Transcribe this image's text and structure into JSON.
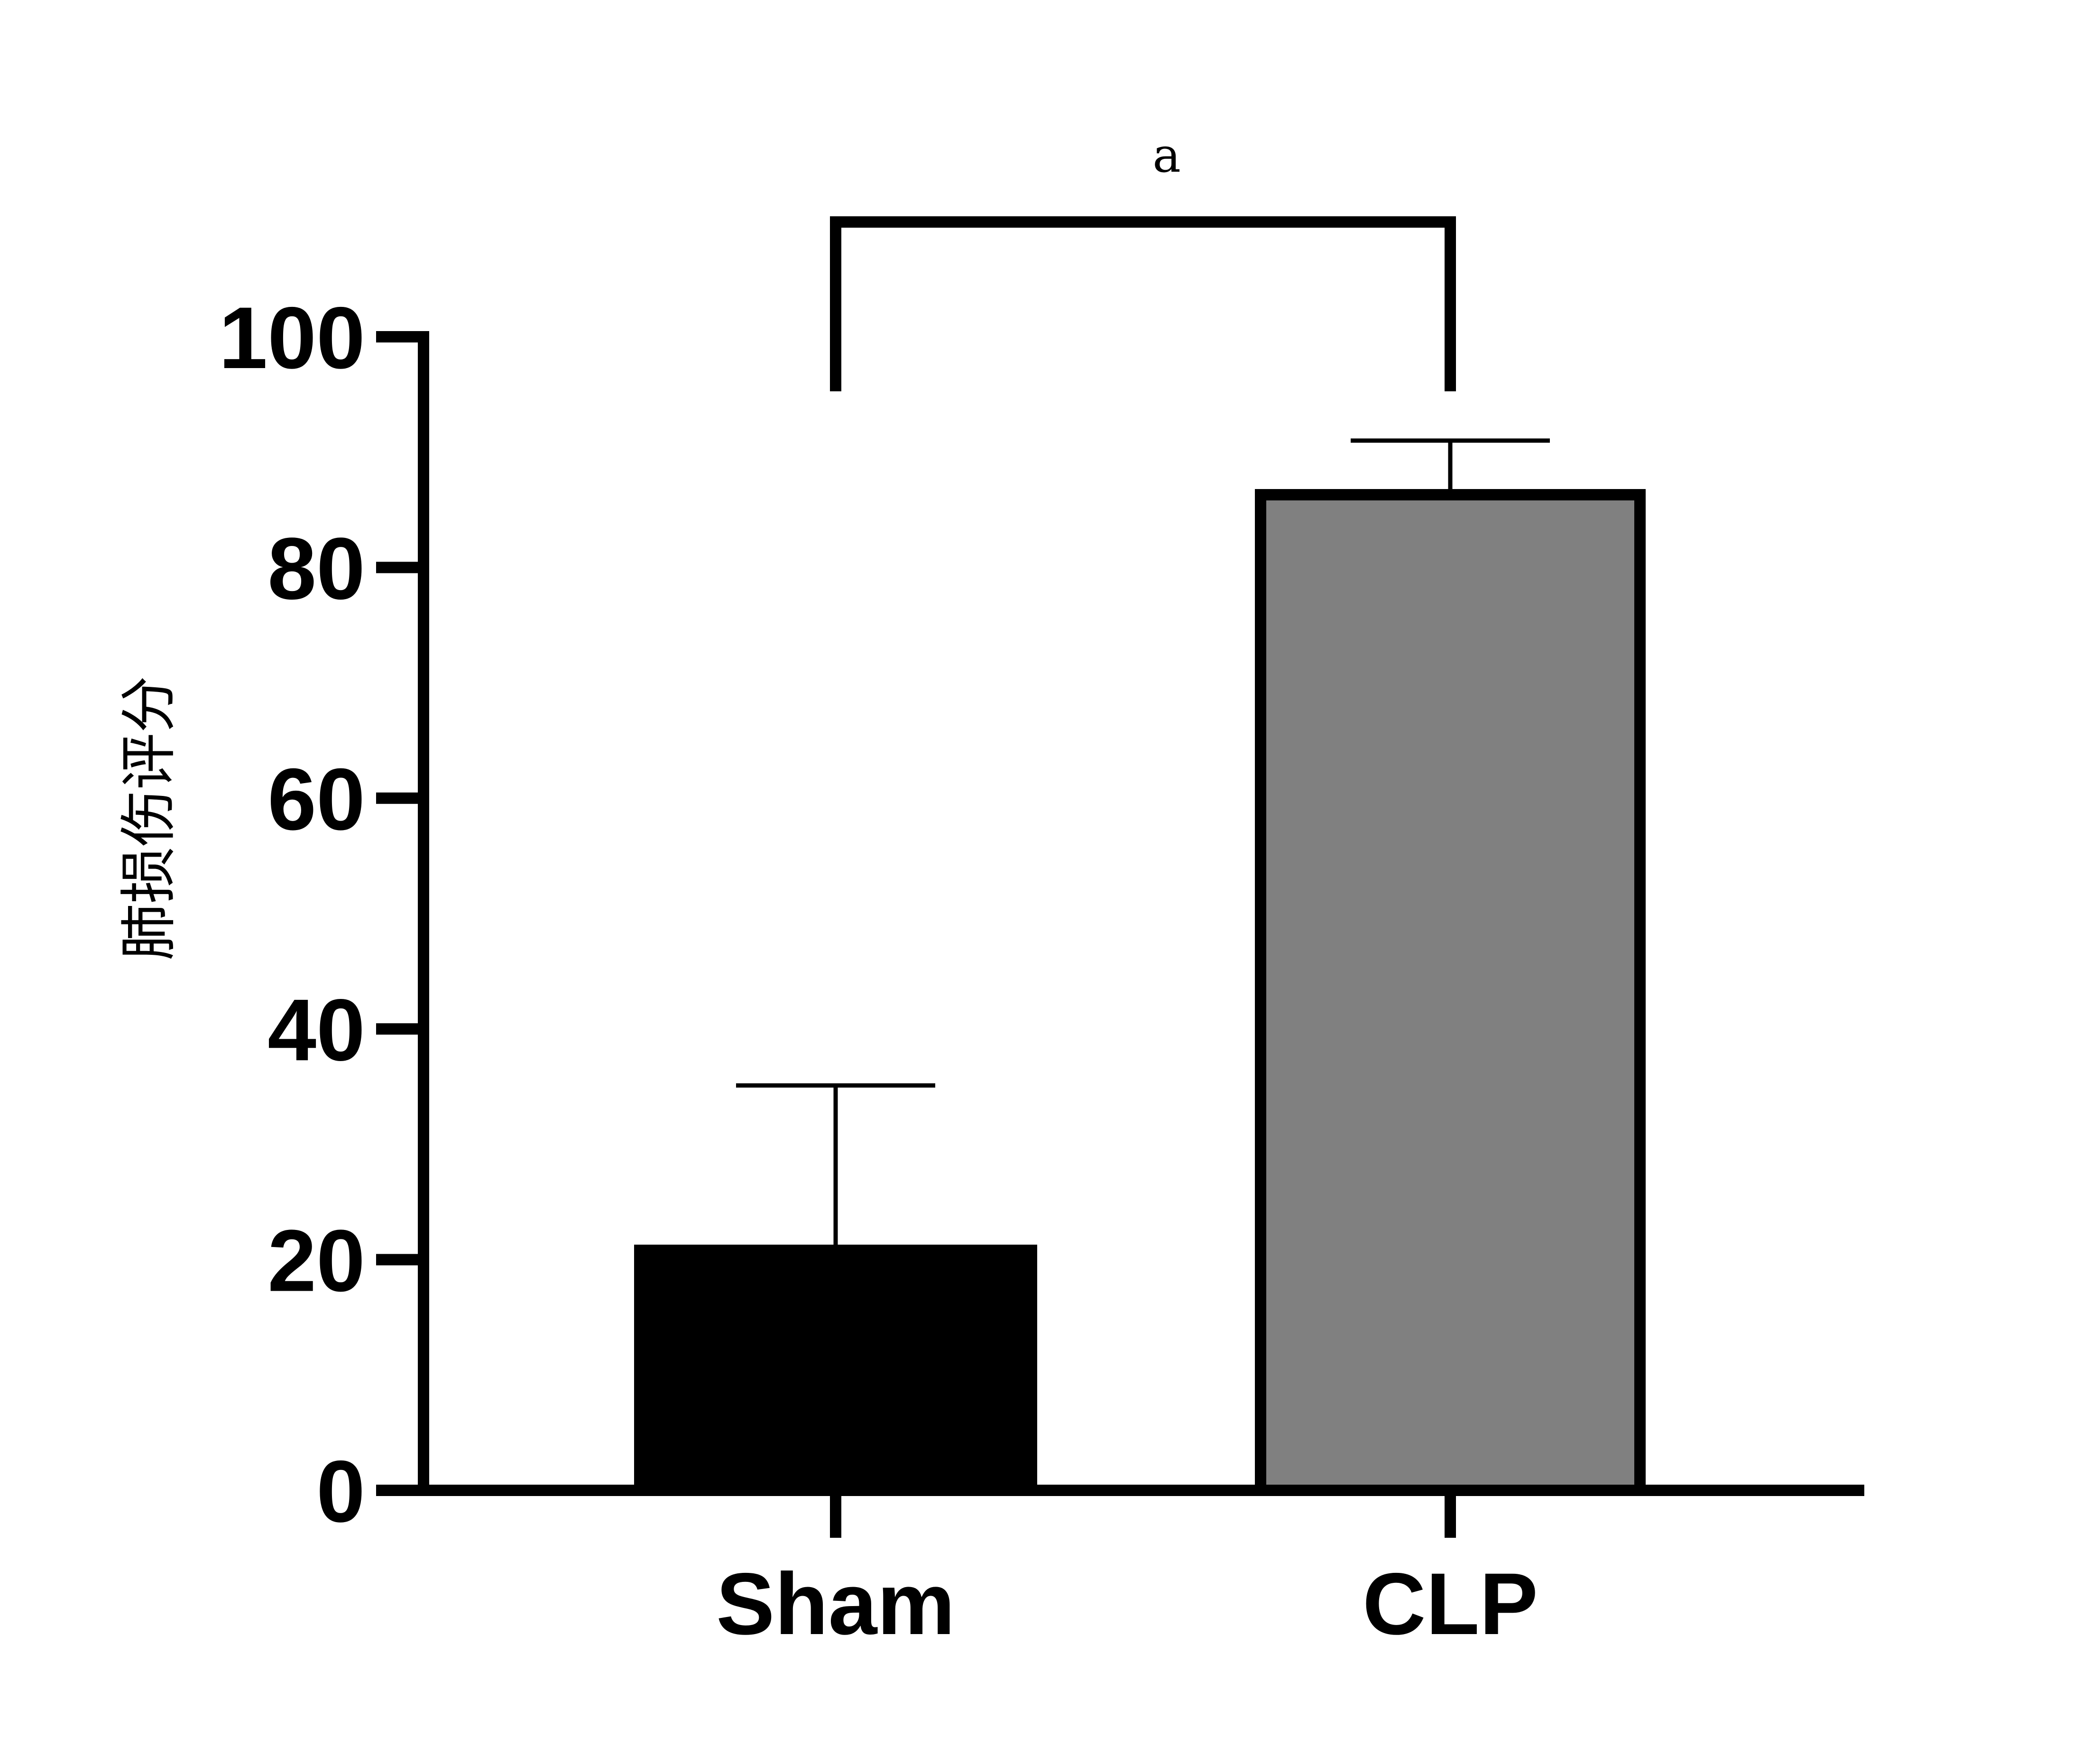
{
  "chart_data": {
    "type": "bar",
    "title": "",
    "xlabel": "",
    "ylabel": "肺损伤评分",
    "ylim": [
      0,
      100
    ],
    "yticks": [
      0,
      20,
      40,
      60,
      80,
      100
    ],
    "categories": [
      "Sham",
      "CLP"
    ],
    "values": [
      21.3,
      86.8
    ],
    "errors": [
      13.8,
      4.2
    ],
    "bar_colors": [
      "#000000",
      "#808080"
    ],
    "bar_outline": "#000000",
    "significance": {
      "from": "Sham",
      "to": "CLP",
      "label": "a"
    },
    "grid": false,
    "legend": "none"
  }
}
